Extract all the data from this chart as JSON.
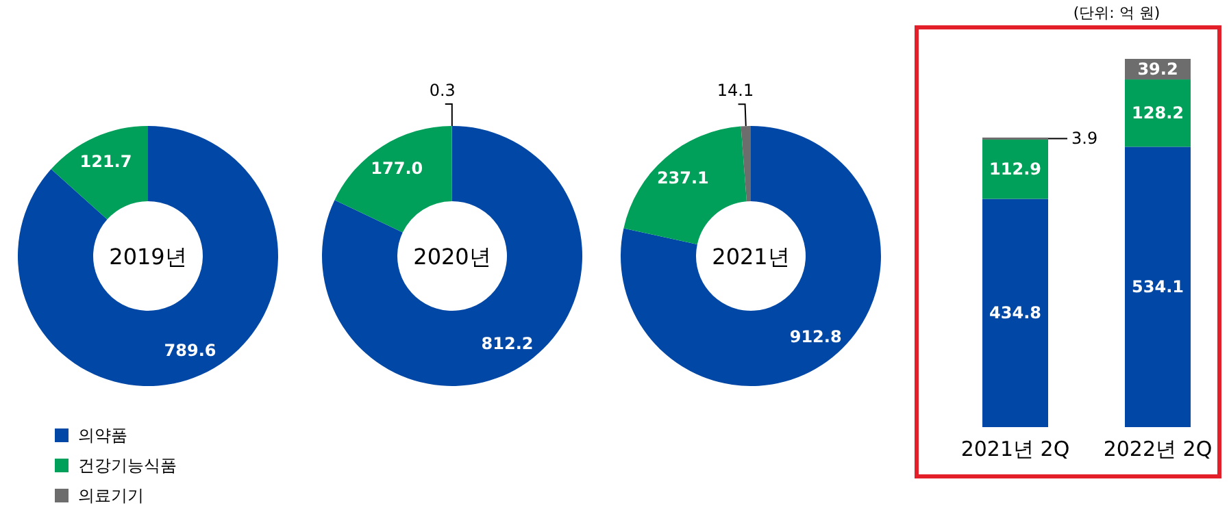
{
  "chart_data": [
    {
      "type": "donut",
      "title": "2019년",
      "categories": [
        "의약품",
        "건강기능식품",
        "의료기기"
      ],
      "values": [
        789.6,
        121.7,
        null
      ],
      "colors": [
        "#0047a6",
        "#00a05a",
        "#6d6d6d"
      ],
      "data_labels": true,
      "legend": "bottom left"
    },
    {
      "type": "donut",
      "title": "2020년",
      "categories": [
        null,
        null,
        null
      ],
      "values": [
        812.2,
        177.0,
        0.3
      ],
      "value_labels": [
        "812.2",
        "177.0",
        "0.3"
      ],
      "colors": [
        "#0047a6",
        "#00a05a",
        "#6d6d6d"
      ],
      "data_labels": true
    },
    {
      "type": "donut",
      "title": "2021년",
      "categories": [
        null,
        null,
        null
      ],
      "values": [
        912.8,
        237.1,
        14.1
      ],
      "colors": [
        "#0047a6",
        "#00a05a",
        "#6d6d6d"
      ],
      "data_labels": true
    },
    {
      "type": "bar",
      "stacked": true,
      "categories": [
        "2021년 2Q",
        "2022년 2Q"
      ],
      "data_labels": true,
      "annotations": [
        "(단위: 억 원)"
      ],
      "series": [
        {
          "color": "#0047a6",
          "values": [
            434.8,
            534.1
          ]
        },
        {
          "color": "#00a05a",
          "values": [
            112.9,
            128.2
          ]
        },
        {
          "color": "#6d6d6d",
          "values": [
            3.9,
            39.2
          ]
        }
      ]
    }
  ]
}
